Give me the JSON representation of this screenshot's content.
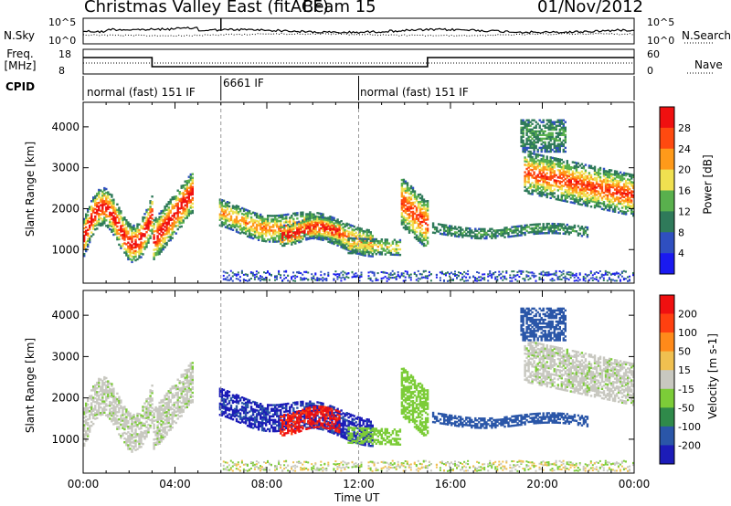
{
  "header": {
    "title": "Christmas Valley East (fitACF)",
    "beam": "Beam 15",
    "date": "01/Nov/2012"
  },
  "panels": {
    "noise": {
      "left_label": "N.Sky",
      "right_label": "N.Search",
      "left_ticks": [
        "10^5",
        "10^0"
      ],
      "right_ticks": [
        "10^5",
        "10^0"
      ]
    },
    "freq": {
      "left_label": "Freq. [MHz]",
      "right_label": "Nave",
      "left_ticks": [
        "18",
        "8"
      ],
      "right_ticks": [
        "60",
        "0"
      ]
    },
    "cpid": {
      "label": "CPID",
      "segments": [
        {
          "text": "normal (fast) 151 IF",
          "start": 0,
          "end": 6
        },
        {
          "text": "6661 IF",
          "start": 6,
          "end": 12
        },
        {
          "text": "normal (fast) 151 IF",
          "start": 12,
          "end": 24
        }
      ]
    }
  },
  "chart_data": [
    {
      "type": "heatmap",
      "name": "power",
      "ylabel": "Slant Range [km]",
      "yticks": [
        "1000",
        "2000",
        "3000",
        "4000"
      ],
      "ylim": [
        180,
        4600
      ],
      "xlim": [
        0,
        24
      ],
      "colorbar": {
        "label": "Power [dB]",
        "ticks": [
          "4",
          "8",
          "12",
          "16",
          "20",
          "24",
          "28"
        ],
        "colors": [
          "#1a1af0",
          "#2f4fc0",
          "#2f7a5a",
          "#59b04d",
          "#f0e050",
          "#ff9a1a",
          "#ff4a10",
          "#f01010"
        ]
      }
    },
    {
      "type": "heatmap",
      "name": "velocity",
      "ylabel": "Slant Range [km]",
      "yticks": [
        "1000",
        "2000",
        "3000",
        "4000"
      ],
      "ylim": [
        180,
        4600
      ],
      "xlim": [
        0,
        24
      ],
      "colorbar": {
        "label": "Velocity [m s-1]",
        "ticks": [
          "200",
          "100",
          "50",
          "15",
          "-15",
          "-50",
          "-100",
          "-200"
        ],
        "colors": [
          "#1c1cb8",
          "#2a56a8",
          "#2f8a4a",
          "#7ccc38",
          "#c8c8c0",
          "#f0c050",
          "#ff8a1a",
          "#ff4010",
          "#f01010"
        ]
      }
    }
  ],
  "x_axis": {
    "label": "Time UT",
    "ticks": [
      "00:00",
      "04:00",
      "08:00",
      "12:00",
      "16:00",
      "20:00",
      "00:00"
    ]
  }
}
